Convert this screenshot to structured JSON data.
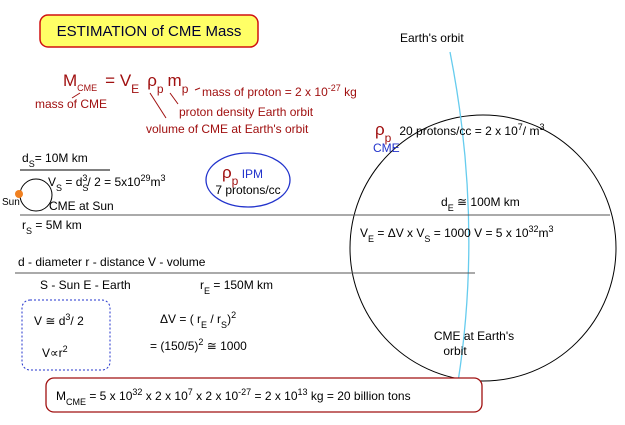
{
  "title": "ESTIMATION of CME Mass",
  "earth_orbit_label": "Earth's orbit",
  "main_formula": [
    "M",
    "CME",
    "= V",
    "E",
    "ρ",
    "p",
    "m",
    "p"
  ],
  "mass_of_cme": "mass of CME",
  "mass_of_proton": [
    "mass of proton = 2 x 10",
    "-27",
    " kg"
  ],
  "proton_density": "proton density Earth orbit",
  "volume_of_cme": "volume of CME at Earth's orbit",
  "earth_density": [
    "ρ",
    "p",
    "20 protons/cc = 2 x 10",
    "7",
    "/ m",
    "3"
  ],
  "earth_cme": "CME",
  "sun_diameter": [
    "d",
    "S",
    "= 10M km"
  ],
  "sun_volume": [
    "V",
    "S",
    " = d",
    "S",
    "3",
    "/ 2 = 5x10",
    "29",
    "m",
    "3"
  ],
  "sun_label": "Sun",
  "cme_at_sun": "CME at Sun",
  "sun_radius": [
    "r",
    "S",
    " = 5M km"
  ],
  "ipm": [
    "ρ",
    "p",
    " IPM",
    "7 protons/cc"
  ],
  "earth_diameter": [
    "d",
    "E",
    " ≅ 100M km"
  ],
  "earth_volume": [
    "V",
    "E",
    " = ΔV x V",
    "S",
    " = 1000 V = 5 x 10",
    "32",
    "m",
    "3"
  ],
  "legend_line1": "d - diameter  r - distance  V - volume",
  "legend_line2": "S - Sun E - Earth",
  "earth_distance": [
    "r",
    "E",
    " = 150M km"
  ],
  "scaling_box": [
    "V ≅ d",
    "3",
    "/ 2",
    "V∝r",
    "2"
  ],
  "delta_v": [
    "ΔV = ( r",
    "E",
    " / r",
    "S",
    ")",
    "2"
  ],
  "delta_v_result": [
    "= (150/5)",
    "2",
    "  ≅ 1000"
  ],
  "cme_at_earth": [
    "CME at Earth's",
    "orbit"
  ],
  "result": [
    "M",
    "CME",
    " = 5 x 10",
    "32",
    " x  2 x 10",
    "7",
    "  x  2 x 10",
    "-27",
    "  =  2 x 10",
    "13",
    "  kg  =  20 billion tons"
  ]
}
